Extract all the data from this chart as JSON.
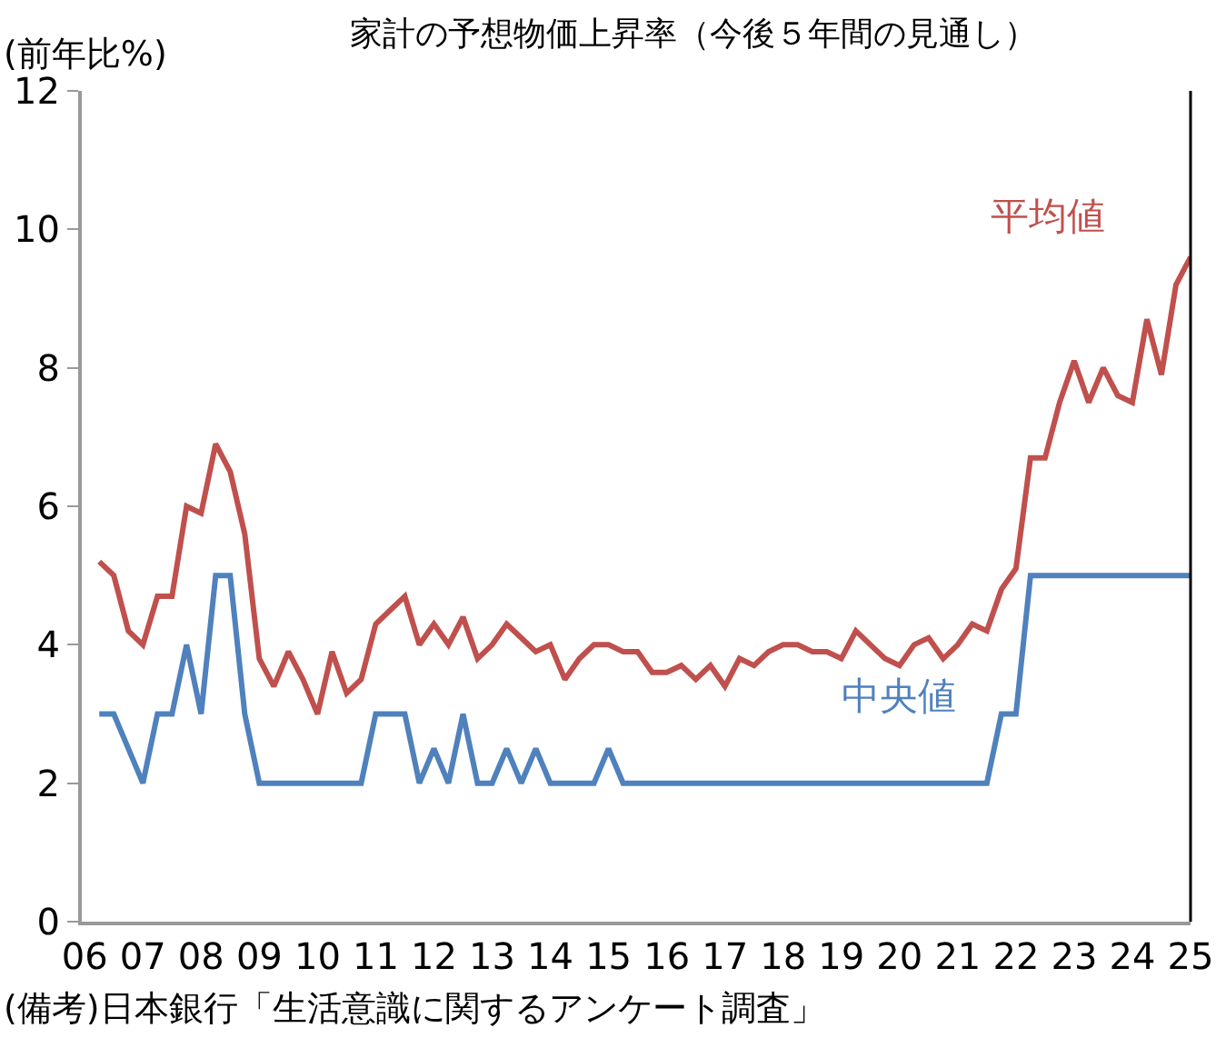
{
  "chart_data": {
    "type": "line",
    "title": "家計の予想物価上昇率（今後５年間の見通し）",
    "ylabel": "(前年比%)",
    "annotations": [
      "(備考)日本銀行「生活意識に関するアンケート調査」"
    ],
    "x": [
      2006.25,
      2006.5,
      2006.75,
      2007,
      2007.25,
      2007.5,
      2007.75,
      2008,
      2008.25,
      2008.5,
      2008.75,
      2009,
      2009.25,
      2009.5,
      2009.75,
      2010,
      2010.25,
      2010.5,
      2010.75,
      2011,
      2011.25,
      2011.5,
      2011.75,
      2012,
      2012.25,
      2012.5,
      2012.75,
      2013,
      2013.25,
      2013.5,
      2013.75,
      2014,
      2014.25,
      2014.5,
      2014.75,
      2015,
      2015.25,
      2015.5,
      2015.75,
      2016,
      2016.25,
      2016.5,
      2016.75,
      2017,
      2017.25,
      2017.5,
      2017.75,
      2018,
      2018.25,
      2018.5,
      2018.75,
      2019,
      2019.25,
      2019.5,
      2019.75,
      2020,
      2020.25,
      2020.5,
      2020.75,
      2021,
      2021.25,
      2021.5,
      2021.75,
      2022,
      2022.25,
      2022.5,
      2022.75,
      2023,
      2023.25,
      2023.5,
      2023.75,
      2024,
      2024.25,
      2024.5,
      2024.75,
      2025
    ],
    "series": [
      {
        "name": "平均値",
        "color": "#c0504d",
        "values": [
          5.2,
          5.0,
          4.2,
          4.0,
          4.7,
          4.7,
          6.0,
          5.9,
          6.9,
          6.5,
          5.6,
          3.8,
          3.4,
          3.9,
          3.5,
          3.0,
          3.9,
          3.3,
          3.5,
          4.3,
          4.5,
          4.7,
          4.0,
          4.3,
          4.0,
          4.4,
          3.8,
          4.0,
          4.3,
          4.1,
          3.9,
          4.0,
          3.5,
          3.8,
          4.0,
          4.0,
          3.9,
          3.9,
          3.6,
          3.6,
          3.7,
          3.5,
          3.7,
          3.4,
          3.8,
          3.7,
          3.9,
          4.0,
          4.0,
          3.9,
          3.9,
          3.8,
          4.2,
          4.0,
          3.8,
          3.7,
          4.0,
          4.1,
          3.8,
          4.0,
          4.3,
          4.2,
          4.8,
          5.1,
          6.7,
          6.7,
          7.5,
          8.1,
          7.5,
          8.0,
          7.6,
          7.5,
          8.7,
          7.9,
          9.2,
          9.6
        ]
      },
      {
        "name": "中央値",
        "color": "#4f81bd",
        "values": [
          3,
          3,
          2.5,
          2,
          3,
          3,
          4,
          3,
          5,
          5,
          3,
          2,
          2,
          2,
          2,
          2,
          2,
          2,
          2,
          3,
          3,
          3,
          2,
          2.5,
          2,
          3,
          2,
          2,
          2.5,
          2,
          2.5,
          2,
          2,
          2,
          2,
          2.5,
          2,
          2,
          2,
          2,
          2,
          2,
          2,
          2,
          2,
          2,
          2,
          2,
          2,
          2,
          2,
          2,
          2,
          2,
          2,
          2,
          2,
          2,
          2,
          2,
          2,
          2,
          3,
          3,
          5,
          5,
          5,
          5,
          5,
          5,
          5,
          5,
          5,
          5,
          5,
          5
        ]
      }
    ],
    "xlim": [
      2005.95,
      2025
    ],
    "xticks": [
      {
        "value": 2006,
        "label": "06"
      },
      {
        "value": 2007,
        "label": "07"
      },
      {
        "value": 2008,
        "label": "08"
      },
      {
        "value": 2009,
        "label": "09"
      },
      {
        "value": 2010,
        "label": "10"
      },
      {
        "value": 2011,
        "label": "11"
      },
      {
        "value": 2012,
        "label": "12"
      },
      {
        "value": 2013,
        "label": "13"
      },
      {
        "value": 2014,
        "label": "14"
      },
      {
        "value": 2015,
        "label": "15"
      },
      {
        "value": 2016,
        "label": "16"
      },
      {
        "value": 2017,
        "label": "17"
      },
      {
        "value": 2018,
        "label": "18"
      },
      {
        "value": 2019,
        "label": "19"
      },
      {
        "value": 2020,
        "label": "20"
      },
      {
        "value": 2021,
        "label": "21"
      },
      {
        "value": 2022,
        "label": "22"
      },
      {
        "value": 2023,
        "label": "23"
      },
      {
        "value": 2024,
        "label": "24"
      },
      {
        "value": 2025,
        "label": "25"
      }
    ],
    "ylim": [
      0,
      12
    ],
    "yticks": [
      0,
      2,
      4,
      6,
      8,
      10,
      12
    ],
    "grid": false,
    "legend": false,
    "marker": "none",
    "line_style": "solid"
  }
}
